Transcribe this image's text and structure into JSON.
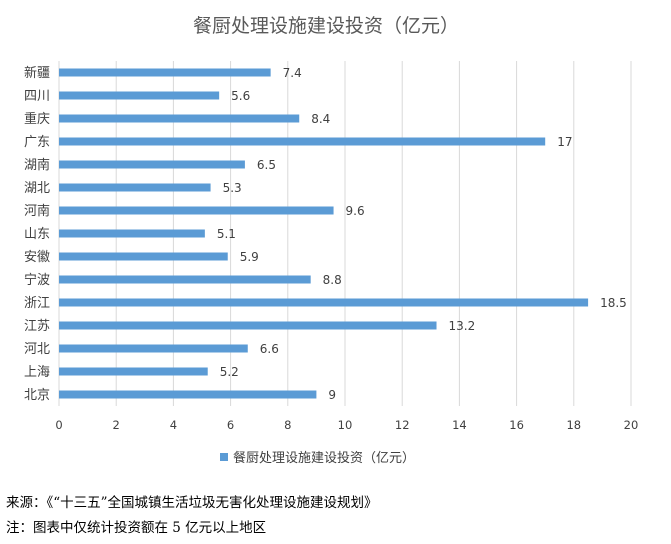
{
  "chart_data": {
    "type": "bar",
    "orientation": "horizontal",
    "title": "餐厨处理设施建设投资（亿元）",
    "categories": [
      "新疆",
      "四川",
      "重庆",
      "广东",
      "湖南",
      "湖北",
      "河南",
      "山东",
      "安徽",
      "宁波",
      "浙江",
      "江苏",
      "河北",
      "上海",
      "北京"
    ],
    "series": [
      {
        "name": "餐厨处理设施建设投资（亿元）",
        "values": [
          7.4,
          5.6,
          8.4,
          17,
          6.5,
          5.3,
          9.6,
          5.1,
          5.9,
          8.8,
          18.5,
          13.2,
          6.6,
          5.2,
          9
        ],
        "color": "#5B9BD5"
      }
    ],
    "xlim": [
      0,
      20
    ],
    "xticks": [
      0,
      2,
      4,
      6,
      8,
      10,
      12,
      14,
      16,
      18,
      20
    ],
    "grid": true,
    "legend_position": "bottom"
  },
  "notes": {
    "source": "来源：《“十三五”全国城镇生活垃圾无害化处理设施建设规划》",
    "footnote": "注：图表中仅统计投资额在 5 亿元以上地区"
  }
}
